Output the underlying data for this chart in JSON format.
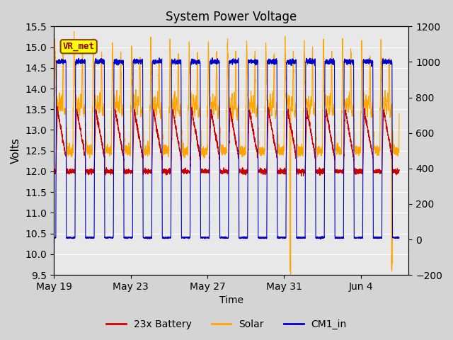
{
  "title": "System Power Voltage",
  "xlabel": "Time",
  "ylabel_left": "Volts",
  "ylim_left": [
    9.5,
    15.5
  ],
  "ylim_right": [
    -200,
    1200
  ],
  "yticks_left": [
    9.5,
    10.0,
    10.5,
    11.0,
    11.5,
    12.0,
    12.5,
    13.0,
    13.5,
    14.0,
    14.5,
    15.0,
    15.5
  ],
  "yticks_right": [
    -200,
    0,
    200,
    400,
    600,
    800,
    1000,
    1200
  ],
  "bg_color": "#d4d4d4",
  "plot_bg_color": "#e8e8e8",
  "grid_color": "#ffffff",
  "annotation_label": "VR_met",
  "annotation_box_facecolor": "#ffff00",
  "annotation_border_color": "#8b4513",
  "annotation_text_color": "#8b0000",
  "colors": {
    "battery": "#cc0000",
    "solar": "#ffa500",
    "cm1": "#0000cc"
  },
  "legend_labels": [
    "23x Battery",
    "Solar",
    "CM1_in"
  ],
  "x_tick_positions": [
    0,
    4,
    8,
    12,
    16
  ],
  "x_tick_labels": [
    "May 19",
    "May 23",
    "May 27",
    "May 31",
    "Jun 4"
  ],
  "x_lim": [
    0,
    18.5
  ],
  "n_days": 18
}
